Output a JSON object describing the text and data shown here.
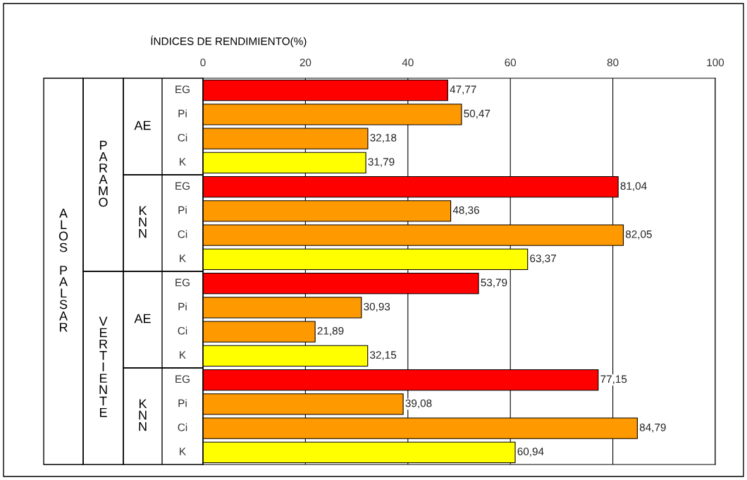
{
  "chart_data": {
    "type": "bar",
    "orientation": "horizontal",
    "title": "ÍNDICES DE RENDIMIENTO(%)",
    "categories": [
      "EG",
      "Pi",
      "Ci",
      "K",
      "EG",
      "Pi",
      "Ci",
      "K",
      "EG",
      "Pi",
      "Ci",
      "K",
      "EG",
      "Pi",
      "Ci",
      "K"
    ],
    "values": [
      47.77,
      50.47,
      32.18,
      31.79,
      81.04,
      48.36,
      82.05,
      63.37,
      53.79,
      30.93,
      21.89,
      32.15,
      77.15,
      39.08,
      84.79,
      60.94
    ],
    "value_labels": [
      "47,77",
      "50,47",
      "32,18",
      "31,79",
      "81,04",
      "48,36",
      "82,05",
      "63,37",
      "53,79",
      "30,93",
      "21,89",
      "32,15",
      "77,15",
      "39,08",
      "84,79",
      "60,94"
    ],
    "colors": [
      "#ff0000",
      "#ff9900",
      "#ff9900",
      "#ffff00",
      "#ff0000",
      "#ff9900",
      "#ff9900",
      "#ffff00",
      "#ff0000",
      "#ff9900",
      "#ff9900",
      "#ffff00",
      "#ff0000",
      "#ff9900",
      "#ff9900",
      "#ffff00"
    ],
    "annotations": [
      "ALOS PALSAR",
      "PARAMO",
      "VERTIENTE",
      "AE",
      "KNN",
      "AE",
      "KNN"
    ],
    "xlim": [
      0,
      100
    ],
    "xticks": [
      0,
      20,
      40,
      60,
      80,
      100
    ],
    "grid": "x",
    "legend": false
  }
}
